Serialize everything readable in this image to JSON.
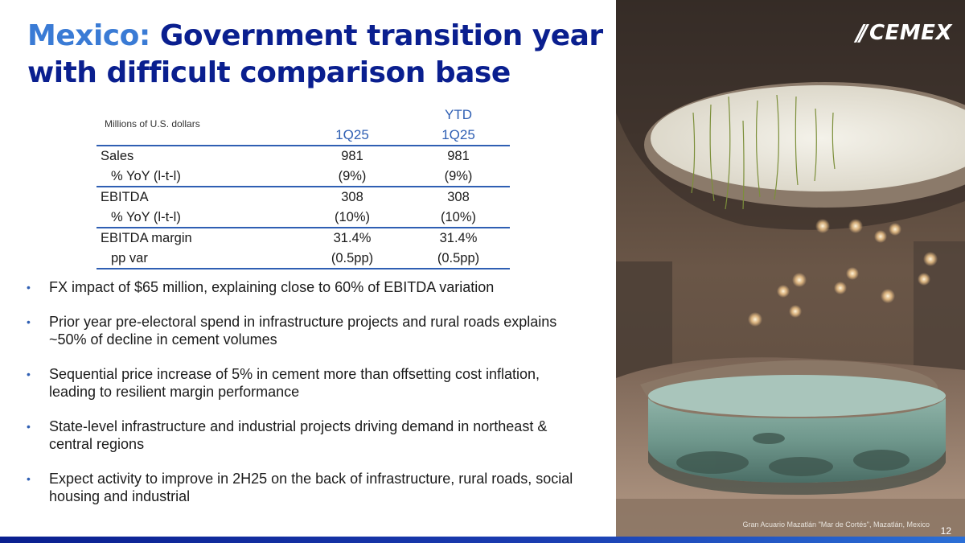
{
  "title": {
    "accent": "Mexico:",
    "main": " Government transition year with difficult comparison base"
  },
  "table": {
    "unit_label": "Millions of U.S. dollars",
    "ytd_label": "YTD",
    "col1": "1Q25",
    "col2": "1Q25",
    "rows": [
      {
        "label": "Sales",
        "v1": "981",
        "v2": "981"
      },
      {
        "label": "% YoY (l-t-l)",
        "v1": "(9%)",
        "v2": "(9%)"
      },
      {
        "label": "EBITDA",
        "v1": "308",
        "v2": "308"
      },
      {
        "label": "% YoY (l-t-l)",
        "v1": "(10%)",
        "v2": "(10%)"
      },
      {
        "label": "EBITDA margin",
        "v1": "31.4%",
        "v2": "31.4%"
      },
      {
        "label": "pp var",
        "v1": "(0.5pp)",
        "v2": "(0.5pp)"
      }
    ]
  },
  "bullets": {
    "marker": "•",
    "items": [
      "FX impact of $65 million, explaining close to 60% of EBITDA variation",
      "Prior year pre-electoral spend in infrastructure projects and rural roads explains ~50% of decline in cement volumes",
      "Sequential price increase of 5% in cement more than offsetting cost inflation, leading to resilient margin performance",
      "State-level infrastructure and industrial projects driving demand in northeast & central regions",
      "Expect activity to improve in 2H25 on the back of infrastructure, rural roads, social housing and industrial"
    ]
  },
  "logo": {
    "mark": "//",
    "word": "CEMEX"
  },
  "photo": {
    "caption": "Gran Acuario Mazatlán \"Mar de Cortés\", Mazatlán, Mexico"
  },
  "page_number": "12",
  "colors": {
    "navy": "#0a1f8f",
    "accent": "#3a7bd5",
    "rule": "#2f5fb3"
  }
}
